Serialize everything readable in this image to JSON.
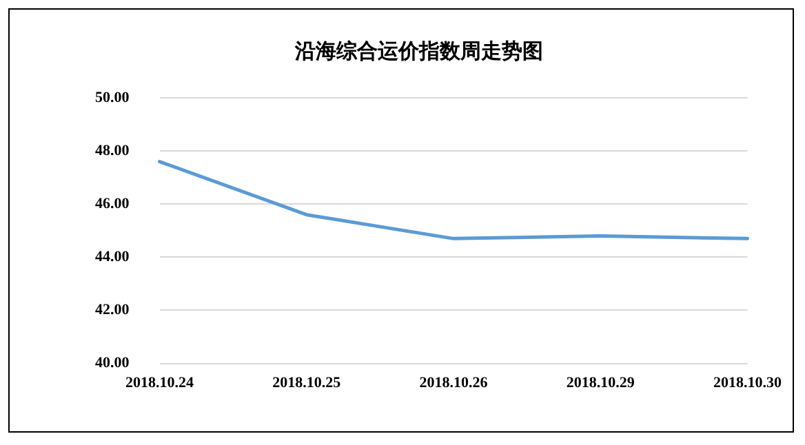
{
  "chart_data": {
    "type": "line",
    "title": "沿海综合运价指数周走势图",
    "categories": [
      "2018.10.24",
      "2018.10.25",
      "2018.10.26",
      "2018.10.29",
      "2018.10.30"
    ],
    "series": [
      {
        "color": "#5b9bd5",
        "values": [
          47.6,
          45.6,
          44.7,
          44.8,
          44.7
        ]
      }
    ],
    "ylim": [
      40,
      50
    ],
    "yticks": [
      {
        "value": 40,
        "label": "40.00"
      },
      {
        "value": 42,
        "label": "42.00"
      },
      {
        "value": 44,
        "label": "44.00"
      },
      {
        "value": 46,
        "label": "46.00"
      },
      {
        "value": 48,
        "label": "48.00"
      },
      {
        "value": 50,
        "label": "50.00"
      }
    ],
    "grid": "y",
    "legend": false,
    "marker": "none",
    "line_style": "solid"
  }
}
